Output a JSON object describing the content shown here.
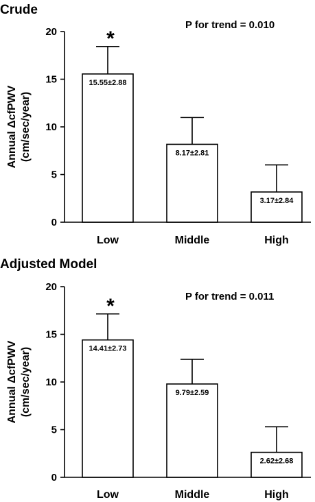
{
  "chart_data": [
    {
      "type": "bar",
      "title": "Crude",
      "annotation": "P for trend = 0.010",
      "ylabel": [
        "Annual ΔcfPWV",
        "(cm/sec/year)"
      ],
      "categories": [
        "Low",
        "Middle",
        "High"
      ],
      "values": [
        15.55,
        8.17,
        3.17
      ],
      "errors": [
        2.88,
        2.81,
        2.84
      ],
      "data_labels": [
        "15.55±2.88",
        "8.17±2.81",
        "3.17±2.84"
      ],
      "significance": [
        "*",
        "",
        ""
      ],
      "ylim": [
        0,
        20
      ],
      "yticks": [
        "0",
        "5",
        "10",
        "15",
        "20"
      ],
      "grid": false
    },
    {
      "type": "bar",
      "title": "Adjusted Model",
      "annotation": "P for trend = 0.011",
      "ylabel": [
        "Annual ΔcfPWV",
        "(cm/sec/year)"
      ],
      "categories": [
        "Low",
        "Middle",
        "High"
      ],
      "values": [
        14.41,
        9.79,
        2.62
      ],
      "errors": [
        2.73,
        2.59,
        2.68
      ],
      "data_labels": [
        "14.41±2.73",
        "9.79±2.59",
        "2.62±2.68"
      ],
      "significance": [
        "*",
        "",
        ""
      ],
      "ylim": [
        0,
        20
      ],
      "yticks": [
        "0",
        "5",
        "10",
        "15",
        "20"
      ],
      "grid": false
    }
  ]
}
